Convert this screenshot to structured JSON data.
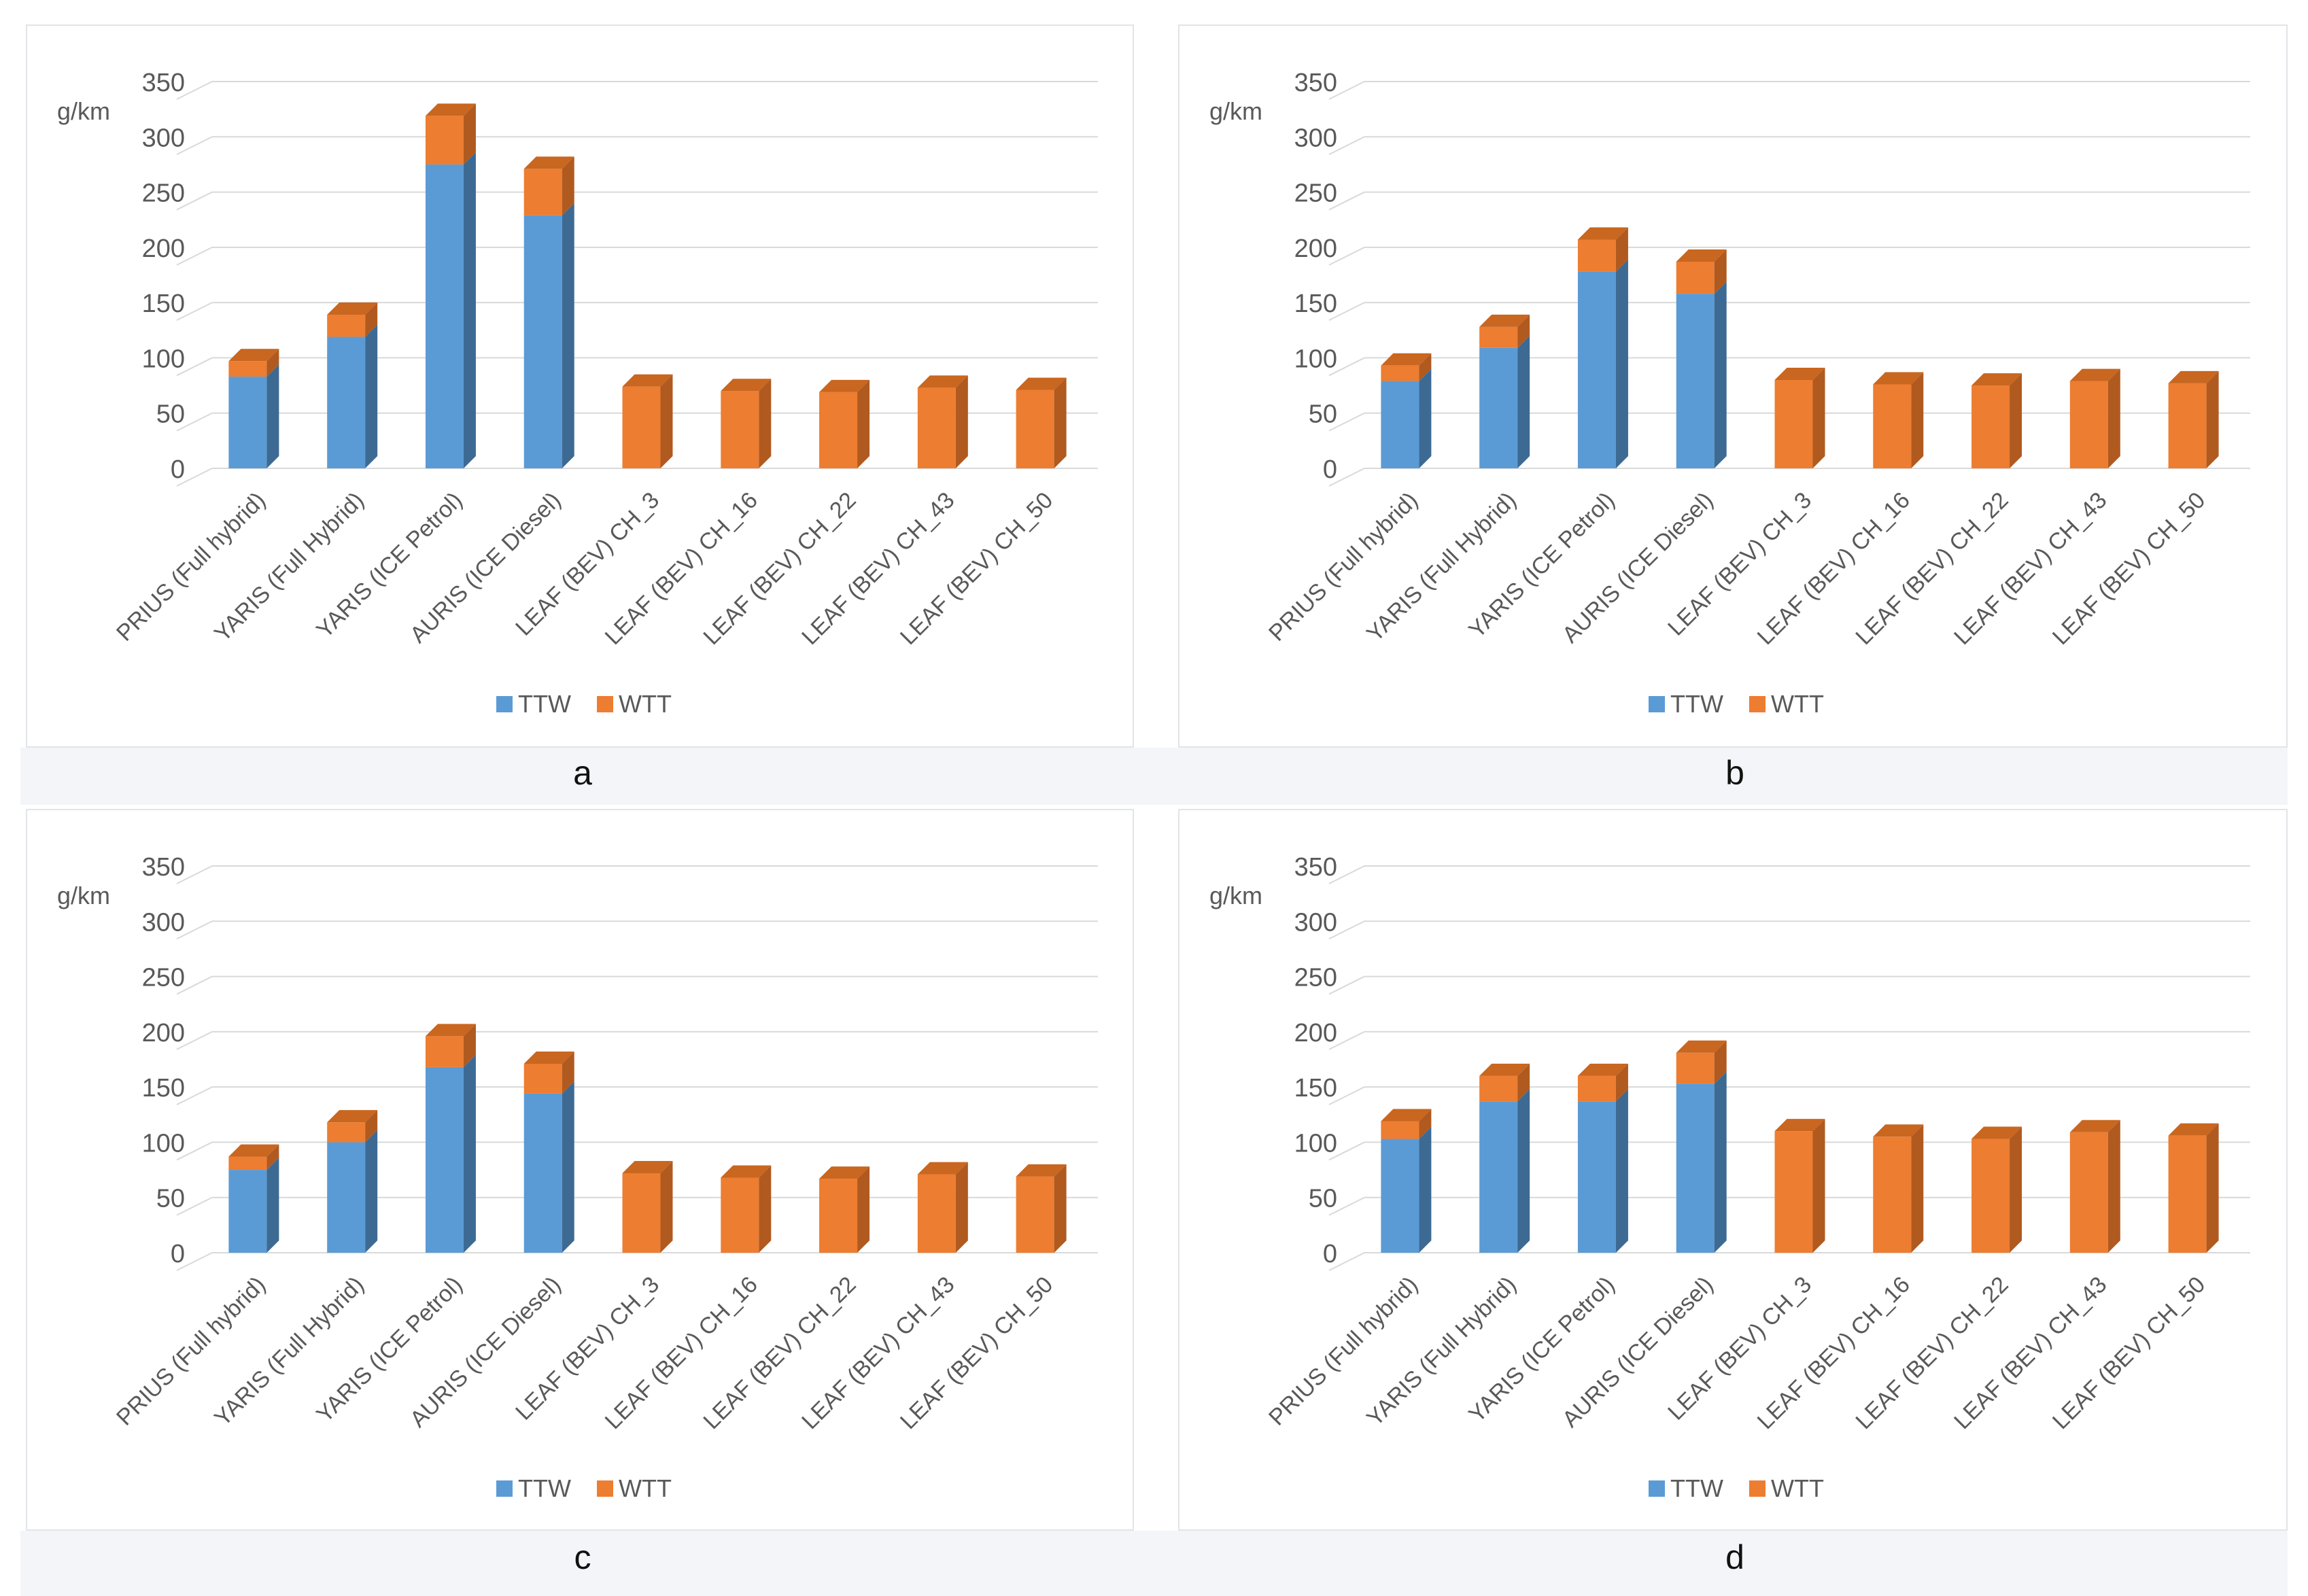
{
  "colors": {
    "ttw": "#5b9bd5",
    "ttw_side": "#3d6a93",
    "ttw_top": "#4a82b4",
    "wtt": "#ed7d31",
    "wtt_side": "#b05a20",
    "wtt_top": "#c9661f",
    "grid": "#d9d9d9",
    "text": "#595959"
  },
  "chart_data": [
    {
      "panel": "a",
      "type": "bar",
      "stacked": true,
      "ylabel": "g/km",
      "ylim": [
        0,
        350
      ],
      "yticks": [
        0,
        50,
        100,
        150,
        200,
        250,
        300,
        350
      ],
      "grid": true,
      "legend": [
        "TTW",
        "WTT"
      ],
      "legend_position": "bottom",
      "categories": [
        "PRIUS (Full hybrid)",
        "YARIS (Full Hybrid)",
        "YARIS (ICE Petrol)",
        "AURIS (ICE Diesel)",
        "LEAF (BEV) CH_3",
        "LEAF (BEV) CH_16",
        "LEAF (BEV) CH_22",
        "LEAF (BEV) CH_43",
        "LEAF (BEV) CH_50"
      ],
      "series": [
        {
          "name": "TTW",
          "values": [
            83,
            119,
            275,
            229,
            0,
            0,
            0,
            0,
            0
          ]
        },
        {
          "name": "WTT",
          "values": [
            14,
            20,
            44,
            42,
            74,
            70,
            69,
            73,
            71
          ]
        }
      ]
    },
    {
      "panel": "b",
      "type": "bar",
      "stacked": true,
      "ylabel": "g/km",
      "ylim": [
        0,
        350
      ],
      "yticks": [
        0,
        50,
        100,
        150,
        200,
        250,
        300,
        350
      ],
      "grid": true,
      "legend": [
        "TTW",
        "WTT"
      ],
      "legend_position": "bottom",
      "categories": [
        "PRIUS (Full hybrid)",
        "YARIS (Full Hybrid)",
        "YARIS (ICE Petrol)",
        "AURIS (ICE Diesel)",
        "LEAF (BEV) CH_3",
        "LEAF (BEV) CH_16",
        "LEAF (BEV) CH_22",
        "LEAF (BEV) CH_43",
        "LEAF (BEV) CH_50"
      ],
      "series": [
        {
          "name": "TTW",
          "values": [
            79,
            109,
            178,
            158,
            0,
            0,
            0,
            0,
            0
          ]
        },
        {
          "name": "WTT",
          "values": [
            14,
            19,
            29,
            29,
            80,
            76,
            75,
            79,
            77
          ]
        }
      ]
    },
    {
      "panel": "c",
      "type": "bar",
      "stacked": true,
      "ylabel": "g/km",
      "ylim": [
        0,
        350
      ],
      "yticks": [
        0,
        50,
        100,
        150,
        200,
        250,
        300,
        350
      ],
      "grid": true,
      "legend": [
        "TTW",
        "WTT"
      ],
      "legend_position": "bottom",
      "categories": [
        "PRIUS (Full hybrid)",
        "YARIS (Full Hybrid)",
        "YARIS (ICE Petrol)",
        "AURIS (ICE Diesel)",
        "LEAF (BEV) CH_3",
        "LEAF (BEV) CH_16",
        "LEAF (BEV) CH_22",
        "LEAF (BEV) CH_43",
        "LEAF (BEV) CH_50"
      ],
      "series": [
        {
          "name": "TTW",
          "values": [
            75,
            100,
            168,
            144,
            0,
            0,
            0,
            0,
            0
          ]
        },
        {
          "name": "WTT",
          "values": [
            12,
            18,
            28,
            27,
            72,
            68,
            67,
            71,
            69
          ]
        }
      ]
    },
    {
      "panel": "d",
      "type": "bar",
      "stacked": true,
      "ylabel": "g/km",
      "ylim": [
        0,
        350
      ],
      "yticks": [
        0,
        50,
        100,
        150,
        200,
        250,
        300,
        350
      ],
      "grid": true,
      "legend": [
        "TTW",
        "WTT"
      ],
      "legend_position": "bottom",
      "categories": [
        "PRIUS (Full hybrid)",
        "YARIS (Full Hybrid)",
        "YARIS (ICE Petrol)",
        "AURIS (ICE Diesel)",
        "LEAF (BEV) CH_3",
        "LEAF (BEV) CH_16",
        "LEAF (BEV) CH_22",
        "LEAF (BEV) CH_43",
        "LEAF (BEV) CH_50"
      ],
      "series": [
        {
          "name": "TTW",
          "values": [
            103,
            137,
            137,
            153,
            0,
            0,
            0,
            0,
            0
          ]
        },
        {
          "name": "WTT",
          "values": [
            16,
            23,
            23,
            28,
            110,
            105,
            103,
            109,
            106
          ]
        }
      ]
    }
  ]
}
